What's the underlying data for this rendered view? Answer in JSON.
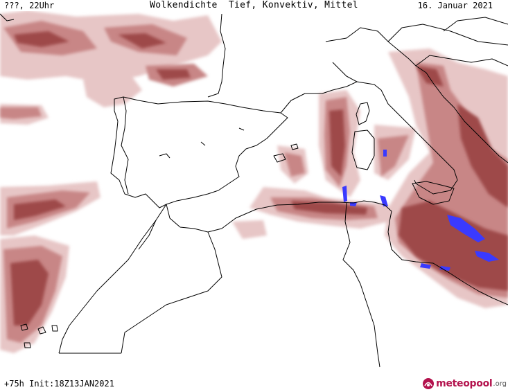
{
  "header": {
    "left": "???, 22Uhr",
    "center": "Wolkendichte  Tief, Konvektiv, Mittel",
    "right": "16. Januar 2021"
  },
  "footer": {
    "run_info": "+75h Init:18Z13JAN2021"
  },
  "logo": {
    "name": "meteopool",
    "tld": ".org"
  },
  "colors": {
    "cloud_light": "#e7c6c6",
    "cloud_medium": "#c88686",
    "cloud_dark": "#9e4a4a",
    "convective": "#3a3aff",
    "coastline": "#000000",
    "logo": "#b3124d"
  }
}
